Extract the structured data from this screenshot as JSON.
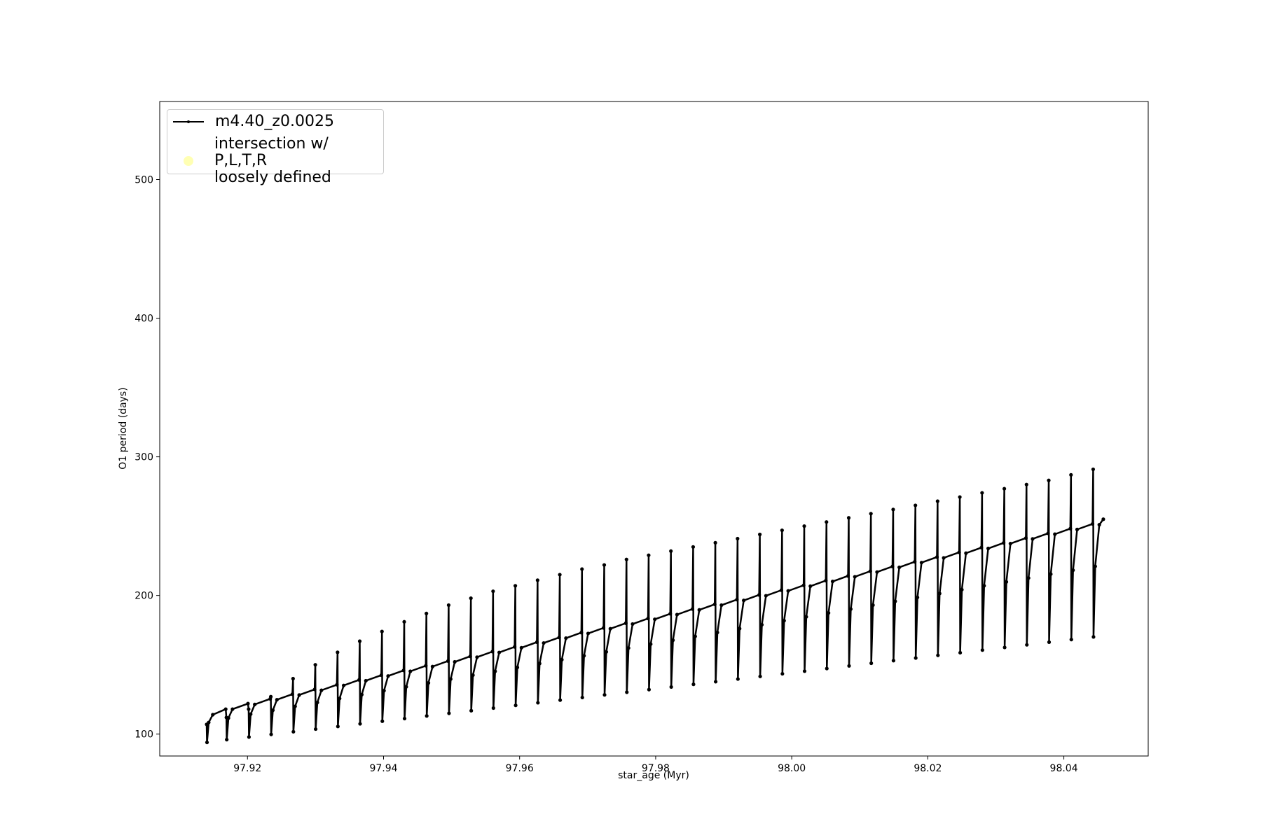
{
  "chart_data": {
    "type": "line",
    "xlabel": "star_age (Myr)",
    "ylabel": "O1 period (days)",
    "xlim": [
      97.9071,
      98.0524
    ],
    "ylim": [
      84.2,
      556.3
    ],
    "xticks": [
      97.92,
      97.94,
      97.96,
      97.98,
      {
        "value": 98,
        "label": "98.00"
      },
      98.02,
      98.04
    ],
    "yticks": [
      100,
      200,
      300,
      400,
      500
    ],
    "legend": "upper left",
    "x": [
      97.914,
      97.91405,
      97.9143,
      97.9149,
      97.9168,
      97.9169,
      97.91695,
      97.9172,
      97.9178,
      97.92007,
      97.92017,
      97.92022,
      97.92047,
      97.92107,
      97.92334,
      97.92343,
      97.92348,
      97.92373,
      97.92433,
      97.9266,
      97.9267,
      97.92675,
      97.927,
      97.9276,
      97.92987,
      97.92997,
      97.93002,
      97.93027,
      97.93087,
      97.93314,
      97.93324,
      97.93329,
      97.93354,
      97.93414,
      97.93641,
      97.9365,
      97.93655,
      97.9368,
      97.9374,
      97.93967,
      97.93977,
      97.93982,
      97.94007,
      97.94067,
      97.94294,
      97.94304,
      97.94309,
      97.94334,
      97.94394,
      97.94621,
      97.9463,
      97.94635,
      97.9466,
      97.9472,
      97.94947,
      97.94957,
      97.94962,
      97.94987,
      97.95047,
      97.95274,
      97.95284,
      97.95289,
      97.95314,
      97.95374,
      97.95601,
      97.9561,
      97.95615,
      97.9564,
      97.957,
      97.95927,
      97.95937,
      97.95942,
      97.95967,
      97.96027,
      97.96254,
      97.96264,
      97.96269,
      97.96294,
      97.96354,
      97.96581,
      97.96591,
      97.96596,
      97.96621,
      97.96681,
      97.96908,
      97.96917,
      97.96922,
      97.96947,
      97.97007,
      97.97234,
      97.97244,
      97.97249,
      97.97274,
      97.97334,
      97.97561,
      97.97571,
      97.97576,
      97.97601,
      97.97661,
      97.97888,
      97.97897,
      97.97902,
      97.97927,
      97.97987,
      97.98214,
      97.98224,
      97.98229,
      97.98254,
      97.98314,
      97.98541,
      97.98551,
      97.98556,
      97.98581,
      97.98641,
      97.98868,
      97.98877,
      97.98882,
      97.98907,
      97.98967,
      97.99194,
      97.99204,
      97.99209,
      97.99234,
      97.99294,
      97.99521,
      97.99531,
      97.99536,
      97.99561,
      97.99621,
      97.99848,
      97.99858,
      97.99863,
      97.99888,
      97.99948,
      98.00175,
      98.00184,
      98.00189,
      98.00214,
      98.00274,
      98.00501,
      98.00511,
      98.00516,
      98.00541,
      98.00601,
      98.00828,
      98.00838,
      98.00843,
      98.00868,
      98.00928,
      98.01155,
      98.01164,
      98.01169,
      98.01194,
      98.01254,
      98.01481,
      98.01491,
      98.01496,
      98.01521,
      98.01581,
      98.01808,
      98.01818,
      98.01823,
      98.01848,
      98.01908,
      98.02135,
      98.02144,
      98.02149,
      98.02174,
      98.02234,
      98.02461,
      98.02471,
      98.02476,
      98.02501,
      98.02561,
      98.02788,
      98.02798,
      98.02803,
      98.02828,
      98.02888,
      98.03115,
      98.03125,
      98.0313,
      98.03155,
      98.03215,
      98.03442,
      98.03451,
      98.03456,
      98.03481,
      98.03541,
      98.03768,
      98.03778,
      98.03783,
      98.03808,
      98.03868,
      98.04095,
      98.04105,
      98.0411,
      98.04135,
      98.04195,
      98.04422,
      98.04431,
      98.04436,
      98.04461,
      98.04521,
      98.0458
    ],
    "series": [
      {
        "name": "m4.40_z0.0025",
        "color": "#000000",
        "values": [
          107,
          94,
          108.4,
          114,
          118,
          112,
          96,
          111.6,
          118,
          122,
          118,
          97.9,
          114.4,
          121.4,
          125.4,
          127,
          99.8,
          117.2,
          124.8,
          128.8,
          140,
          101.7,
          120,
          128.2,
          132.2,
          150,
          103.6,
          122.8,
          131.6,
          135.6,
          159,
          105.5,
          125.7,
          135.1,
          139.1,
          167,
          107.4,
          128.5,
          138.5,
          142.5,
          174,
          109.3,
          131.3,
          141.9,
          145.9,
          181,
          111.2,
          134.1,
          145.3,
          149.3,
          187,
          113.1,
          136.9,
          148.7,
          152.7,
          193,
          115,
          139.7,
          152.1,
          156.1,
          198,
          116.9,
          142.5,
          155.5,
          159.5,
          203,
          118.8,
          145.3,
          158.9,
          162.9,
          207,
          120.7,
          148.1,
          162.3,
          166.3,
          211,
          122.6,
          150.9,
          165.7,
          169.7,
          215,
          124.5,
          153.7,
          169.2,
          173.2,
          219,
          126.4,
          156.5,
          172.6,
          176.6,
          222,
          128.3,
          159.3,
          176,
          180,
          226,
          130.2,
          162.1,
          179.4,
          183.4,
          229,
          132.1,
          164.9,
          182.8,
          186.8,
          232,
          134,
          167.7,
          186.2,
          190.2,
          235,
          135.9,
          170.5,
          189.6,
          193.6,
          238,
          137.8,
          173.3,
          193,
          197,
          241,
          139.7,
          176.1,
          196.4,
          200.4,
          244,
          141.6,
          178.9,
          199.8,
          203.8,
          247,
          143.5,
          181.8,
          203.3,
          207.3,
          250,
          145.4,
          184.6,
          206.7,
          210.7,
          253,
          147.3,
          187.4,
          210.1,
          214.1,
          256,
          149.2,
          190.2,
          213.5,
          217.5,
          259,
          151.1,
          193,
          216.9,
          220.9,
          262,
          153,
          195.8,
          220.3,
          224.3,
          265,
          154.9,
          198.6,
          223.7,
          227.7,
          268,
          156.8,
          201.4,
          227.1,
          231.1,
          271,
          158.7,
          204.2,
          230.5,
          234.5,
          274,
          160.6,
          207,
          233.9,
          237.9,
          277,
          162.5,
          209.8,
          237.4,
          241.4,
          280,
          164.4,
          212.6,
          240.8,
          244.8,
          283,
          166.3,
          215.4,
          244.2,
          248.2,
          287,
          168.2,
          218.2,
          247.6,
          251.6,
          291,
          170.1,
          221,
          251,
          255
        ]
      },
      {
        "name": "intersection w/ P,L,T,R\nloosely defined",
        "color": "#ffffb3"
      }
    ]
  }
}
